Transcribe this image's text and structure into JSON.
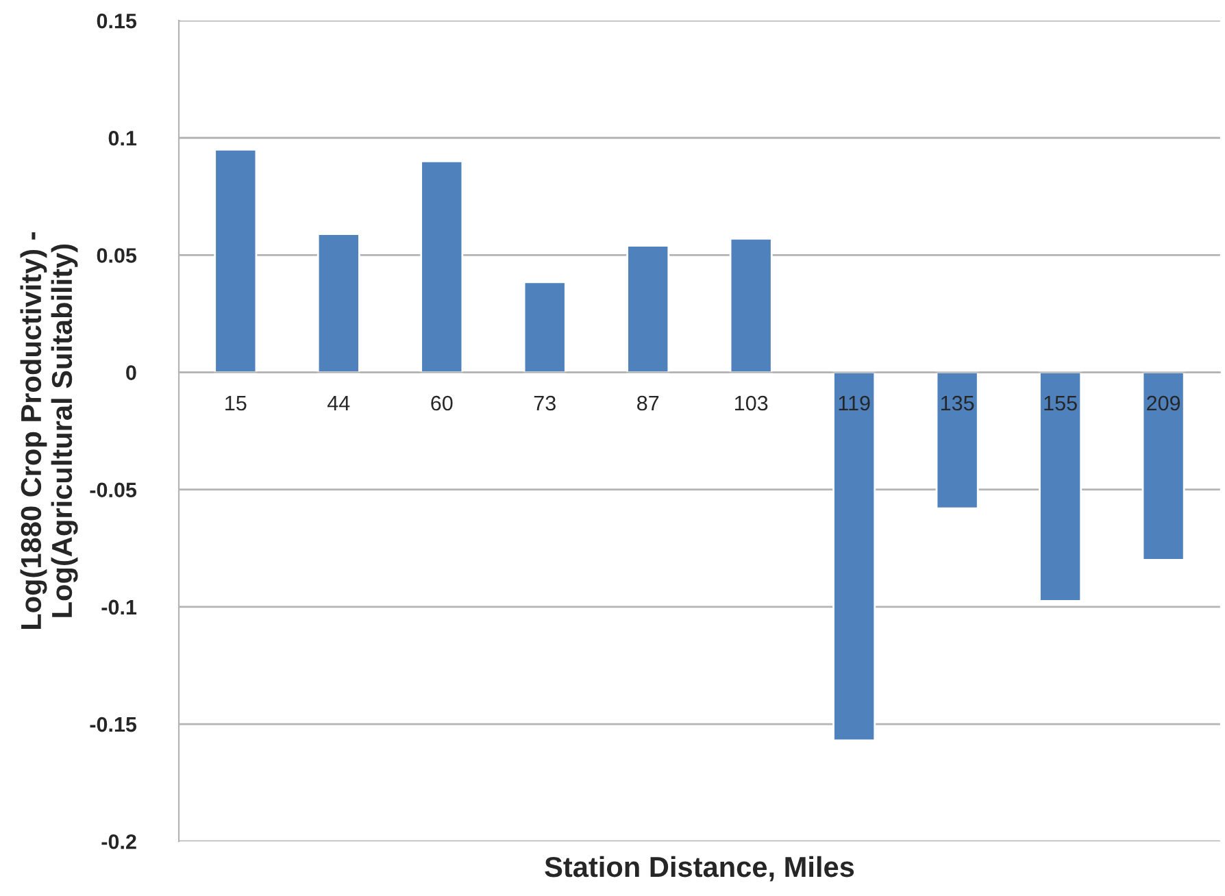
{
  "chart_data": {
    "type": "bar",
    "xlabel": "Station Distance, Miles",
    "ylabel": "Log(1880 Crop Productivity) -\nLog(Agricultural Suitability)",
    "categories": [
      "15",
      "44",
      "60",
      "73",
      "87",
      "103",
      "119",
      "135",
      "155",
      "209"
    ],
    "values": [
      0.095,
      0.059,
      0.09,
      0.0385,
      0.054,
      0.057,
      -0.157,
      -0.058,
      -0.0975,
      -0.08
    ],
    "color": "#4f81bd",
    "ylim": [
      -0.2,
      0.15
    ],
    "yticks": [
      -0.2,
      -0.15,
      -0.1,
      -0.05,
      0,
      0.05,
      0.1,
      0.15
    ],
    "grid": "y",
    "legend": false
  }
}
